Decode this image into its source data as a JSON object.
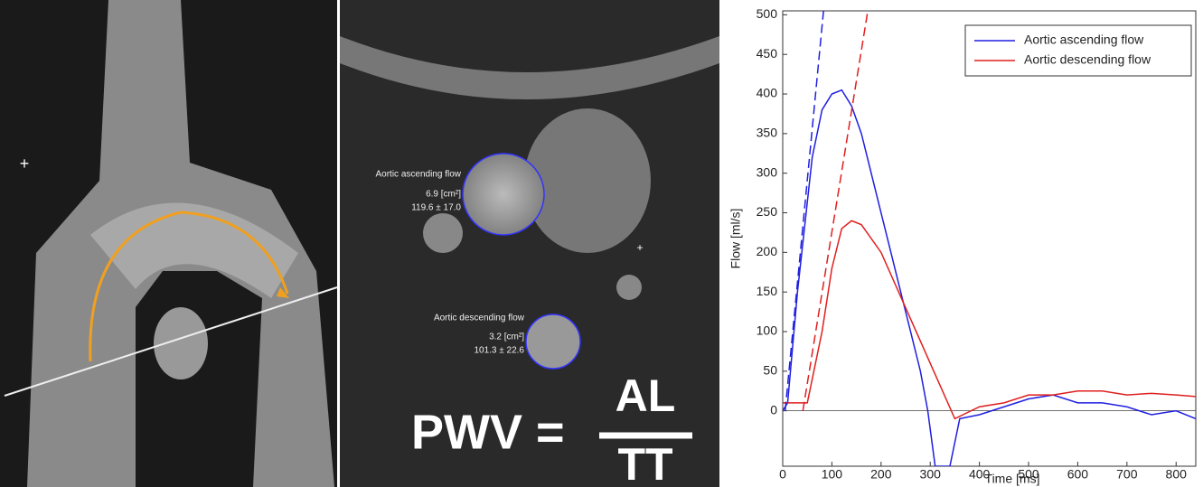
{
  "panels": {
    "ascending_label": "Aortic ascending flow",
    "ascending_area": "6.9 [cm²]",
    "ascending_value": "119.6 ± 17.0",
    "descending_label": "Aortic descending flow",
    "descending_area": "3.2 [cm²]",
    "descending_value": "101.3 ± 22.6",
    "formula_left": "PWV =",
    "formula_numerator": "AL",
    "formula_denominator": "TT"
  },
  "chart_data": {
    "type": "line",
    "xlabel": "Time [ms]",
    "ylabel": "Flow [ml/s]",
    "xlim": [
      0,
      840
    ],
    "ylim": [
      -70,
      505
    ],
    "xticks": [
      0,
      100,
      200,
      300,
      400,
      500,
      600,
      700,
      800
    ],
    "yticks": [
      0,
      50,
      100,
      150,
      200,
      250,
      300,
      350,
      400,
      450,
      500
    ],
    "legend": "upper right",
    "series": [
      {
        "name": "Aortic ascending flow",
        "color": "#1f1fe0",
        "x": [
          0,
          10,
          30,
          60,
          80,
          100,
          120,
          140,
          160,
          180,
          200,
          220,
          240,
          260,
          280,
          295,
          310,
          340,
          360,
          400,
          450,
          500,
          550,
          600,
          650,
          700,
          750,
          800,
          840
        ],
        "values": [
          0,
          10,
          150,
          320,
          380,
          400,
          405,
          385,
          350,
          300,
          250,
          200,
          150,
          100,
          50,
          0,
          -70,
          -70,
          -10,
          -5,
          5,
          15,
          20,
          10,
          10,
          5,
          -5,
          0,
          -10
        ]
      },
      {
        "name": "Aortic descending flow",
        "color": "#e01f1f",
        "x": [
          0,
          50,
          80,
          100,
          120,
          140,
          160,
          200,
          250,
          300,
          350,
          400,
          450,
          500,
          550,
          600,
          650,
          700,
          750,
          800,
          840
        ],
        "values": [
          10,
          10,
          100,
          180,
          230,
          240,
          235,
          200,
          130,
          60,
          -10,
          5,
          10,
          20,
          20,
          25,
          25,
          20,
          22,
          20,
          18
        ]
      },
      {
        "color": "#1f1fe0",
        "dashed": true,
        "x": [
          5,
          83
        ],
        "values": [
          0,
          505
        ]
      },
      {
        "color": "#e01f1f",
        "dashed": true,
        "x": [
          41,
          173
        ],
        "values": [
          0,
          505
        ]
      }
    ]
  }
}
